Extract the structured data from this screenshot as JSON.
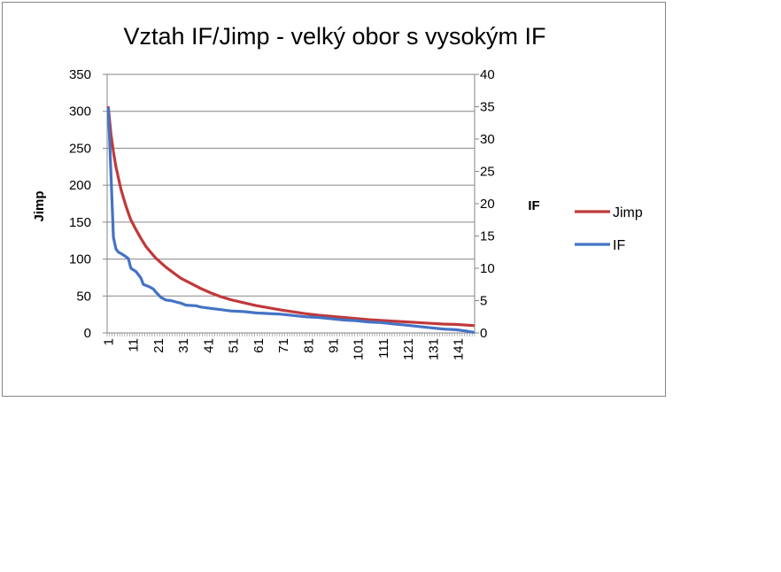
{
  "chart_data": {
    "type": "line",
    "title": "Vztah IF/Jimp - velký obor s vysokým IF",
    "ylabel": "Jimp",
    "y2label": "IF",
    "ylim": [
      0,
      350
    ],
    "y2lim": [
      0,
      40
    ],
    "yticks": [
      "0",
      "50",
      "100",
      "150",
      "200",
      "250",
      "300",
      "350"
    ],
    "y2ticks": [
      "0",
      "5",
      "10",
      "15",
      "20",
      "25",
      "30",
      "35",
      "40"
    ],
    "x_count": 147,
    "xticks": [
      "1",
      "11",
      "21",
      "31",
      "41",
      "51",
      "61",
      "71",
      "81",
      "91",
      "101",
      "111",
      "121",
      "131",
      "141"
    ],
    "legend_position": "right",
    "grid": true,
    "series": [
      {
        "name": "Jimp",
        "axis": "left",
        "color": "#c0393b",
        "points": [
          [
            1,
            305
          ],
          [
            2,
            270
          ],
          [
            3,
            245
          ],
          [
            4,
            225
          ],
          [
            5,
            210
          ],
          [
            6,
            195
          ],
          [
            7,
            183
          ],
          [
            8,
            172
          ],
          [
            9,
            162
          ],
          [
            10,
            153
          ],
          [
            12,
            140
          ],
          [
            14,
            128
          ],
          [
            16,
            117
          ],
          [
            18,
            109
          ],
          [
            20,
            101
          ],
          [
            22,
            95
          ],
          [
            24,
            89
          ],
          [
            26,
            84
          ],
          [
            28,
            79
          ],
          [
            30,
            74
          ],
          [
            34,
            67
          ],
          [
            38,
            60
          ],
          [
            42,
            54
          ],
          [
            46,
            49
          ],
          [
            50,
            45
          ],
          [
            55,
            41
          ],
          [
            60,
            37
          ],
          [
            65,
            34
          ],
          [
            70,
            31
          ],
          [
            75,
            28.5
          ],
          [
            80,
            26
          ],
          [
            85,
            24
          ],
          [
            90,
            22.5
          ],
          [
            95,
            21
          ],
          [
            100,
            19.5
          ],
          [
            105,
            18
          ],
          [
            110,
            17
          ],
          [
            115,
            16
          ],
          [
            120,
            15
          ],
          [
            125,
            14
          ],
          [
            130,
            13
          ],
          [
            135,
            12
          ],
          [
            140,
            11.5
          ],
          [
            147,
            10
          ]
        ]
      },
      {
        "name": "IF",
        "axis": "right",
        "color": "#4473c4",
        "points": [
          [
            1,
            34.7
          ],
          [
            2,
            25
          ],
          [
            3,
            14.8
          ],
          [
            4,
            13
          ],
          [
            5,
            12.5
          ],
          [
            6,
            12.3
          ],
          [
            8,
            11.8
          ],
          [
            9,
            11.5
          ],
          [
            10,
            10
          ],
          [
            12,
            9.5
          ],
          [
            14,
            8.5
          ],
          [
            15,
            7.5
          ],
          [
            17,
            7.2
          ],
          [
            19,
            6.8
          ],
          [
            20,
            6.3
          ],
          [
            22,
            5.5
          ],
          [
            24,
            5.1
          ],
          [
            26,
            5
          ],
          [
            28,
            4.8
          ],
          [
            30,
            4.6
          ],
          [
            32,
            4.3
          ],
          [
            36,
            4.2
          ],
          [
            38,
            4
          ],
          [
            42,
            3.8
          ],
          [
            46,
            3.6
          ],
          [
            50,
            3.4
          ],
          [
            55,
            3.3
          ],
          [
            60,
            3.1
          ],
          [
            65,
            3
          ],
          [
            70,
            2.9
          ],
          [
            75,
            2.7
          ],
          [
            80,
            2.5
          ],
          [
            85,
            2.4
          ],
          [
            90,
            2.2
          ],
          [
            95,
            2
          ],
          [
            100,
            1.9
          ],
          [
            105,
            1.7
          ],
          [
            110,
            1.6
          ],
          [
            115,
            1.4
          ],
          [
            120,
            1.2
          ],
          [
            125,
            1
          ],
          [
            130,
            0.8
          ],
          [
            135,
            0.6
          ],
          [
            140,
            0.5
          ],
          [
            144,
            0.3
          ],
          [
            147,
            0.1
          ]
        ]
      }
    ]
  }
}
